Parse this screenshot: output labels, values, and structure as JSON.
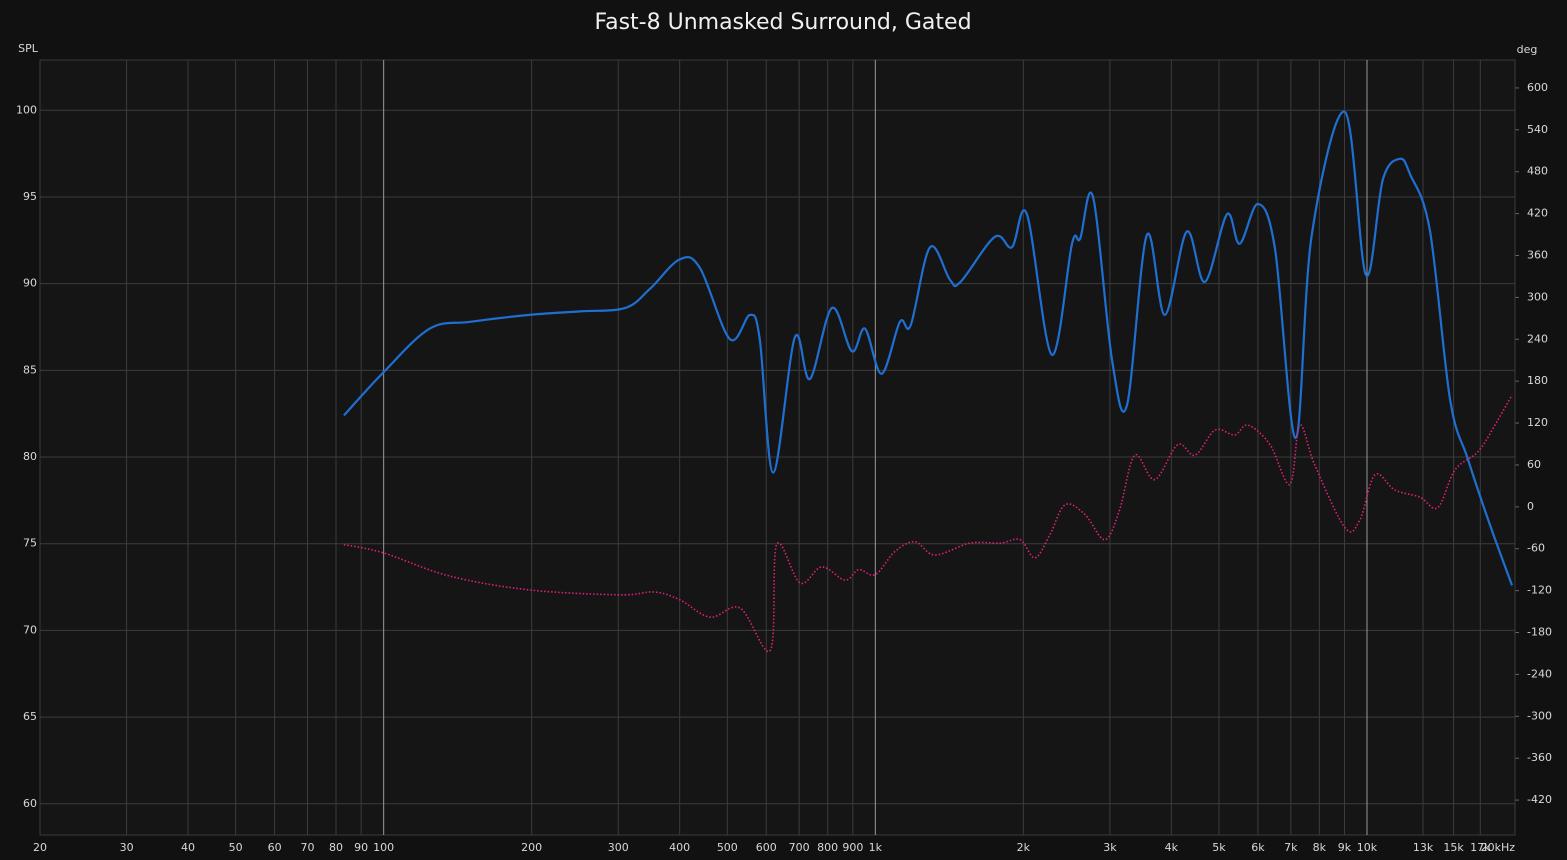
{
  "chart_data": {
    "type": "line",
    "title": "Fast-8 Unmasked Surround, Gated",
    "y_label": "SPL",
    "y2_label": "deg",
    "log_x": true,
    "grid": true,
    "xlim": [
      20,
      20000
    ],
    "ylim": [
      58.2,
      102.9
    ],
    "y2lim": [
      -470,
      640
    ],
    "xticks": [
      20,
      30,
      40,
      50,
      60,
      70,
      80,
      90,
      100,
      200,
      300,
      400,
      500,
      600,
      700,
      800,
      900,
      {
        "value": 1000,
        "label": "1k"
      },
      {
        "value": 2000,
        "label": "2k"
      },
      {
        "value": 3000,
        "label": "3k"
      },
      {
        "value": 4000,
        "label": "4k"
      },
      {
        "value": 5000,
        "label": "5k"
      },
      {
        "value": 6000,
        "label": "6k"
      },
      {
        "value": 7000,
        "label": "7k"
      },
      {
        "value": 8000,
        "label": "8k"
      },
      {
        "value": 9000,
        "label": "9k"
      },
      {
        "value": 10000,
        "label": "10k"
      },
      {
        "value": 13000,
        "label": "13k"
      },
      {
        "value": 15000,
        "label": "15k"
      },
      {
        "value": 17000,
        "label": "17k"
      },
      {
        "value": 20000,
        "label": "20kHz"
      }
    ],
    "yticks": [
      60,
      65,
      70,
      75,
      80,
      85,
      90,
      95,
      100
    ],
    "y2ticks": [
      -420,
      -360,
      -300,
      -240,
      -180,
      -120,
      -60,
      0,
      60,
      120,
      180,
      240,
      300,
      360,
      420,
      480,
      540,
      600
    ],
    "series": [
      {
        "color": "#1f6fd1",
        "style": "solid",
        "x": [
          83,
          100,
          124,
          150,
          198,
          251,
          310,
          348,
          400,
          440,
          506,
          556,
          582,
          620,
          686,
          736,
          816,
          896,
          953,
          1030,
          1122,
          1180,
          1292,
          1420,
          1490,
          1750,
          1896,
          2034,
          2285,
          2512,
          2610,
          2772,
          3030,
          3250,
          3566,
          3880,
          4300,
          4680,
          5190,
          5510,
          6000,
          6500,
          7160,
          7720,
          9020,
          9950,
          10770,
          11670,
          12240,
          13420,
          14760,
          16030,
          17780,
          19720
        ],
        "values": [
          82.4,
          84.9,
          87.4,
          87.8,
          88.2,
          88.4,
          88.6,
          89.7,
          91.4,
          90.9,
          86.8,
          88.2,
          86.8,
          79.1,
          86.9,
          84.5,
          88.6,
          86.1,
          87.4,
          84.8,
          87.8,
          87.6,
          92.1,
          90.2,
          90.1,
          92.7,
          92.1,
          94.0,
          85.9,
          92.3,
          92.6,
          95.0,
          85.6,
          83.0,
          92.8,
          88.2,
          93.0,
          90.1,
          94.0,
          92.3,
          94.6,
          92.0,
          81.1,
          92.8,
          99.9,
          90.5,
          96.0,
          97.2,
          96.3,
          93.1,
          83.3,
          79.9,
          76.1,
          72.6
        ]
      },
      {
        "color": "#e0207a",
        "style": "dotted",
        "axis": "y2",
        "x": [
          83,
          100,
          136,
          198,
          303,
          355,
          400,
          461,
          531,
          612,
          630,
          703,
          778,
          868,
          925,
          1000,
          1096,
          1204,
          1322,
          1557,
          1794,
          1970,
          2112,
          2265,
          2432,
          2670,
          2930,
          3140,
          3370,
          3700,
          4120,
          4470,
          4910,
          5380,
          5730,
          6350,
          6970,
          7300,
          7830,
          9020,
          9670,
          10380,
          11400,
          12800,
          13930,
          15100,
          16820,
          18200,
          19720
        ],
        "values": [
          -54,
          -66,
          -99,
          -119,
          -126,
          -122,
          -133,
          -158,
          -145,
          -205,
          -54,
          -109,
          -86,
          -105,
          -90,
          -97,
          -64,
          -50,
          -69,
          -52,
          -52,
          -47,
          -73,
          -40,
          3,
          -11,
          -47,
          -4,
          74,
          39,
          89,
          74,
          110,
          103,
          117,
          89,
          32,
          117,
          60,
          -30,
          -19,
          46,
          24,
          14,
          -1,
          53,
          79,
          117,
          160
        ]
      }
    ]
  }
}
